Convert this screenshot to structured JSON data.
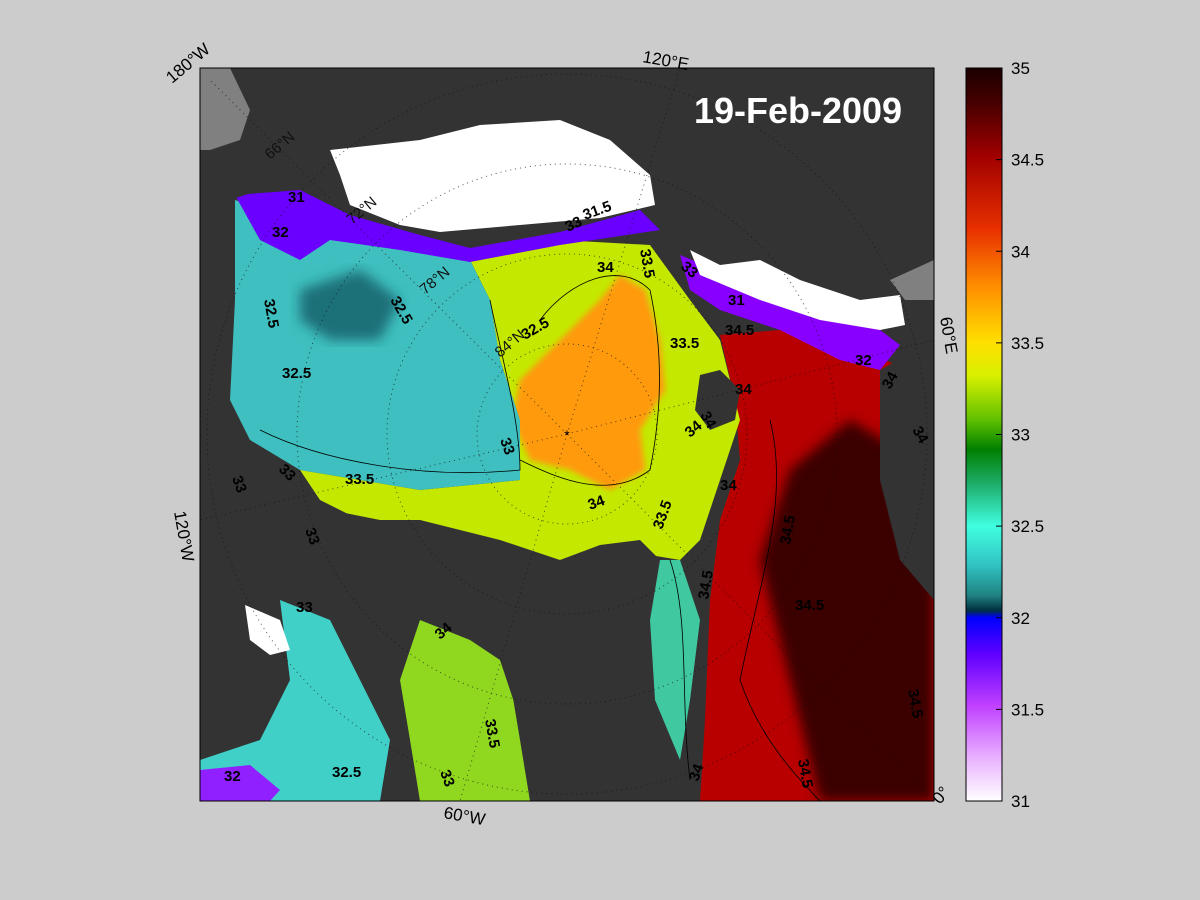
{
  "map": {
    "date_label": "19-Feb-2009",
    "longitude_labels": [
      "180°W",
      "120°E",
      "60°E",
      "0°",
      "60°W",
      "120°W"
    ],
    "latitude_labels": [
      "66°N",
      "72°N",
      "78°N",
      "84°N"
    ],
    "contour_labels": [
      "31",
      "32",
      "32.5",
      "32.5",
      "32.5",
      "32.5",
      "33.5",
      "33",
      "33",
      "33.5",
      "33",
      "33",
      "33",
      "34",
      "33.5",
      "34",
      "34",
      "34.5",
      "34.5",
      "34",
      "31",
      "32",
      "33.5",
      "34",
      "34",
      "34",
      "34",
      "34.5",
      "34.5",
      "34.5",
      "34.5",
      "33.5",
      "34",
      "33",
      "32",
      "32.5",
      "33",
      "33",
      "34",
      "31.5"
    ],
    "colors": {
      "background": "#cccccc",
      "land": "#333333",
      "ice": "#ffffff",
      "no_data": "#808080"
    }
  },
  "colorbar": {
    "ticks": [
      "35",
      "34.5",
      "34",
      "33.5",
      "33",
      "32.5",
      "32",
      "31.5",
      "31"
    ],
    "min": 31,
    "max": 35
  }
}
